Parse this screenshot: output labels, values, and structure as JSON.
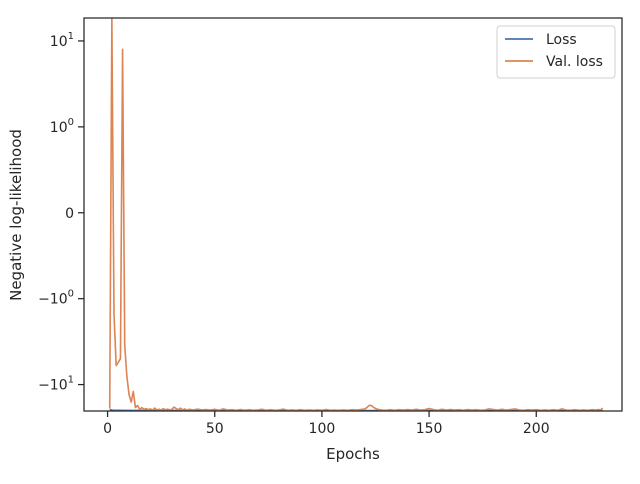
{
  "chart_data": {
    "type": "line",
    "title": "",
    "xlabel": "Epochs",
    "ylabel": "Negative log-likelihood",
    "xlim": [
      -11,
      240
    ],
    "x_ticks": [
      0,
      50,
      100,
      150,
      200
    ],
    "x_tick_labels": [
      "0",
      "50",
      "100",
      "150",
      "200"
    ],
    "y_scale": "symlog",
    "y_linthresh": 1,
    "ylim": [
      -20.3,
      18.5
    ],
    "y_ticks": [
      {
        "value": 10,
        "base": "10",
        "exp": "1",
        "sign": ""
      },
      {
        "value": 1,
        "base": "10",
        "exp": "0",
        "sign": ""
      },
      {
        "value": 0,
        "plain": "0"
      },
      {
        "value": -1,
        "base": "10",
        "exp": "0",
        "sign": "−"
      },
      {
        "value": -10,
        "base": "10",
        "exp": "1",
        "sign": "−"
      }
    ],
    "legend": {
      "position": "top-right"
    },
    "series": [
      {
        "name": "Loss",
        "color": "#4c72b0",
        "points": [
          [
            1,
            -19.5
          ],
          [
            2,
            -19.8
          ],
          [
            3,
            -19.9
          ],
          [
            5,
            -19.95
          ],
          [
            10,
            -20.0
          ],
          [
            20,
            -20.02
          ],
          [
            50,
            -20.03
          ],
          [
            100,
            -20.05
          ],
          [
            150,
            -20.05
          ],
          [
            200,
            -20.06
          ],
          [
            231,
            -20.06
          ]
        ]
      },
      {
        "name": "Val. loss",
        "color": "#dd8452",
        "points": [
          [
            1,
            -19.0
          ],
          [
            2,
            18.0
          ],
          [
            3,
            -1.5
          ],
          [
            4,
            -6.0
          ],
          [
            5,
            -5.5
          ],
          [
            6,
            -5.0
          ],
          [
            7,
            8.0
          ],
          [
            8,
            -3.5
          ],
          [
            9,
            -8.0
          ],
          [
            10,
            -13.0
          ],
          [
            11,
            -16.0
          ],
          [
            12,
            -12.0
          ],
          [
            13,
            -18.5
          ],
          [
            14,
            -17.5
          ],
          [
            15,
            -19.5
          ],
          [
            16,
            -18.5
          ],
          [
            17,
            -19.5
          ],
          [
            18,
            -19.0
          ],
          [
            19,
            -19.6
          ],
          [
            20,
            -19.2
          ],
          [
            21,
            -19.8
          ],
          [
            22,
            -18.8
          ],
          [
            23,
            -19.7
          ],
          [
            24,
            -19.4
          ],
          [
            25,
            -19.8
          ],
          [
            26,
            -19.1
          ],
          [
            27,
            -19.6
          ],
          [
            28,
            -19.3
          ],
          [
            29,
            -19.7
          ],
          [
            30,
            -19.4
          ],
          [
            31,
            -18.3
          ],
          [
            32,
            -19.0
          ],
          [
            33,
            -19.6
          ],
          [
            34,
            -18.8
          ],
          [
            35,
            -19.7
          ],
          [
            36,
            -19.2
          ],
          [
            37,
            -19.8
          ],
          [
            38,
            -19.4
          ],
          [
            40,
            -19.7
          ],
          [
            42,
            -19.3
          ],
          [
            44,
            -19.7
          ],
          [
            46,
            -19.5
          ],
          [
            48,
            -19.8
          ],
          [
            50,
            -19.4
          ],
          [
            52,
            -19.9
          ],
          [
            54,
            -19.2
          ],
          [
            56,
            -19.8
          ],
          [
            58,
            -19.6
          ],
          [
            60,
            -19.9
          ],
          [
            62,
            -19.5
          ],
          [
            64,
            -19.9
          ],
          [
            66,
            -19.6
          ],
          [
            68,
            -19.9
          ],
          [
            70,
            -19.7
          ],
          [
            72,
            -19.4
          ],
          [
            74,
            -19.9
          ],
          [
            76,
            -19.6
          ],
          [
            78,
            -19.9
          ],
          [
            80,
            -19.7
          ],
          [
            82,
            -19.3
          ],
          [
            84,
            -19.9
          ],
          [
            86,
            -19.7
          ],
          [
            88,
            -19.9
          ],
          [
            90,
            -19.6
          ],
          [
            92,
            -19.9
          ],
          [
            94,
            -19.7
          ],
          [
            96,
            -19.9
          ],
          [
            98,
            -19.7
          ],
          [
            100,
            -19.9
          ],
          [
            102,
            -19.5
          ],
          [
            104,
            -19.9
          ],
          [
            106,
            -19.8
          ],
          [
            108,
            -19.9
          ],
          [
            110,
            -19.7
          ],
          [
            112,
            -19.9
          ],
          [
            114,
            -19.6
          ],
          [
            116,
            -19.8
          ],
          [
            118,
            -19.5
          ],
          [
            120,
            -19.2
          ],
          [
            121,
            -18.5
          ],
          [
            122,
            -17.5
          ],
          [
            123,
            -17.5
          ],
          [
            124,
            -18.3
          ],
          [
            125,
            -19.0
          ],
          [
            126,
            -19.4
          ],
          [
            128,
            -19.8
          ],
          [
            130,
            -19.9
          ],
          [
            132,
            -19.6
          ],
          [
            134,
            -19.9
          ],
          [
            136,
            -19.6
          ],
          [
            138,
            -19.8
          ],
          [
            140,
            -19.5
          ],
          [
            142,
            -19.8
          ],
          [
            144,
            -19.4
          ],
          [
            146,
            -19.8
          ],
          [
            148,
            -19.6
          ],
          [
            150,
            -19.0
          ],
          [
            152,
            -19.5
          ],
          [
            154,
            -19.9
          ],
          [
            156,
            -19.4
          ],
          [
            158,
            -19.8
          ],
          [
            160,
            -19.5
          ],
          [
            162,
            -19.8
          ],
          [
            164,
            -19.6
          ],
          [
            166,
            -19.9
          ],
          [
            168,
            -19.5
          ],
          [
            170,
            -19.8
          ],
          [
            172,
            -19.6
          ],
          [
            174,
            -19.9
          ],
          [
            176,
            -19.7
          ],
          [
            178,
            -19.2
          ],
          [
            180,
            -19.5
          ],
          [
            182,
            -19.8
          ],
          [
            184,
            -19.4
          ],
          [
            186,
            -19.8
          ],
          [
            188,
            -19.5
          ],
          [
            190,
            -19.2
          ],
          [
            192,
            -19.7
          ],
          [
            194,
            -19.9
          ],
          [
            196,
            -19.6
          ],
          [
            198,
            -19.8
          ],
          [
            200,
            -19.6
          ],
          [
            202,
            -19.9
          ],
          [
            204,
            -19.7
          ],
          [
            206,
            -19.9
          ],
          [
            208,
            -19.6
          ],
          [
            210,
            -19.9
          ],
          [
            212,
            -19.2
          ],
          [
            214,
            -19.8
          ],
          [
            216,
            -19.9
          ],
          [
            218,
            -19.6
          ],
          [
            220,
            -19.9
          ],
          [
            222,
            -19.7
          ],
          [
            224,
            -19.9
          ],
          [
            226,
            -19.6
          ],
          [
            228,
            -19.8
          ],
          [
            229,
            -19.5
          ],
          [
            230,
            -19.7
          ],
          [
            231,
            -18.8
          ]
        ]
      }
    ]
  }
}
